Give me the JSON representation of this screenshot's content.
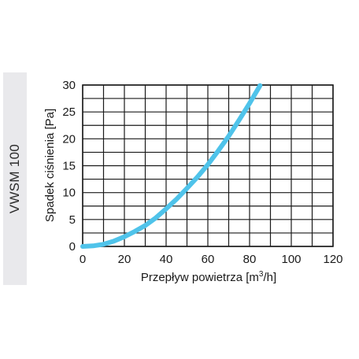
{
  "side_label": "VWSM 100",
  "chart_data": {
    "type": "line",
    "title": "",
    "xlabel_main": "Przepływ powietrza [m",
    "xlabel_sup": "3",
    "xlabel_end": "/h]",
    "ylabel": "Spadek ciśnienia [Pa]",
    "xlim": [
      0,
      120
    ],
    "ylim": [
      0,
      30
    ],
    "x_ticks": [
      0,
      20,
      40,
      60,
      80,
      100,
      120
    ],
    "y_ticks": [
      0,
      5,
      10,
      15,
      20,
      25,
      30
    ],
    "x_grid_step": 10,
    "y_grid_step": 2.5,
    "grid": true,
    "series": [
      {
        "color": "#4fc3ea",
        "x": [
          0,
          5,
          10,
          15,
          20,
          25,
          30,
          35,
          40,
          45,
          50,
          55,
          60,
          65,
          70,
          75,
          80,
          85
        ],
        "y": [
          0,
          0.1,
          0.4,
          1.0,
          1.8,
          2.8,
          3.9,
          5.3,
          7.0,
          8.8,
          10.8,
          12.9,
          15.2,
          17.8,
          20.5,
          23.5,
          26.6,
          29.9
        ]
      }
    ]
  }
}
